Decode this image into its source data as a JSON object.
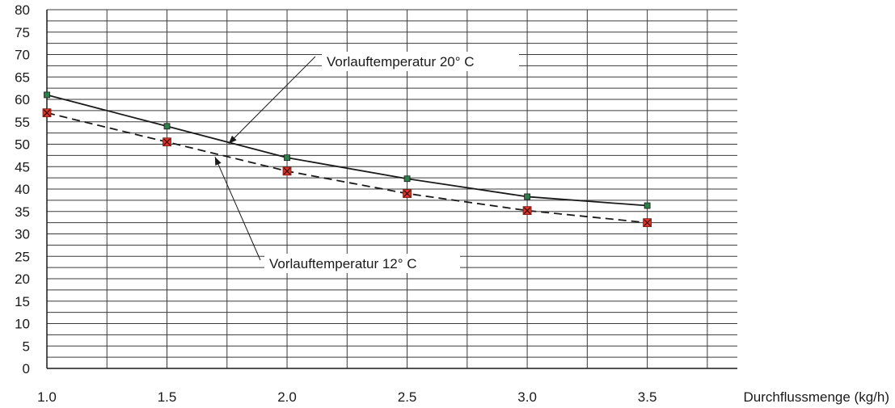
{
  "chart_data": {
    "type": "line",
    "xlabel": "Durchflussmenge (kg/h)",
    "ylabel": "",
    "x": [
      1.0,
      1.5,
      2.0,
      2.5,
      3.0,
      3.5
    ],
    "xlim": [
      1.0,
      3.875
    ],
    "ylim": [
      0,
      80
    ],
    "xticks": [
      "1.0",
      "1.5",
      "2.0",
      "2.5",
      "3.0",
      "3.5"
    ],
    "yticks": [
      "0",
      "5",
      "10",
      "15",
      "20",
      "25",
      "30",
      "35",
      "40",
      "45",
      "50",
      "55",
      "60",
      "65",
      "70",
      "75",
      "80"
    ],
    "grid": true,
    "series": [
      {
        "name": "Vorlauftemperatur 20° C",
        "values": [
          61,
          54,
          47,
          42.3,
          38.3,
          36.3
        ],
        "line_style": "solid",
        "marker": "square",
        "marker_color": "#2e7d4a"
      },
      {
        "name": "Vorlauftemperatur 12° C",
        "values": [
          57,
          50.5,
          44,
          39,
          35.2,
          32.5
        ],
        "line_style": "dashed",
        "marker": "x-square",
        "marker_color": "#d9352b"
      }
    ],
    "annotations": [
      {
        "text": "Vorlauftemperatur 20° C",
        "series": 0,
        "points_to_x": 1.75
      },
      {
        "text": "Vorlauftemperatur 12° C",
        "series": 1,
        "points_to_x": 1.7
      }
    ]
  }
}
